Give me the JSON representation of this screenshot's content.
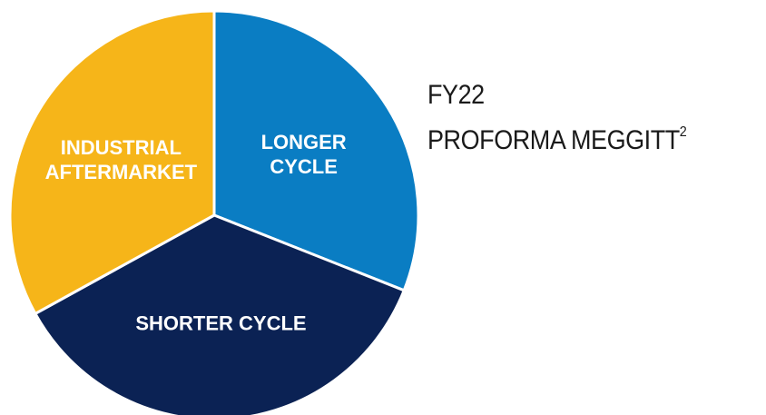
{
  "chart_data": {
    "type": "pie",
    "title": [
      "FY22",
      "PROFORMA MEGGITT"
    ],
    "title_footnote": "2",
    "categories": [
      "LONGER CYCLE",
      "SHORTER CYCLE",
      "INDUSTRIAL AFTERMARKET"
    ],
    "values": [
      31,
      36,
      33
    ],
    "colors": [
      "#0a7dc3",
      "#0b2254",
      "#f6b519"
    ]
  }
}
